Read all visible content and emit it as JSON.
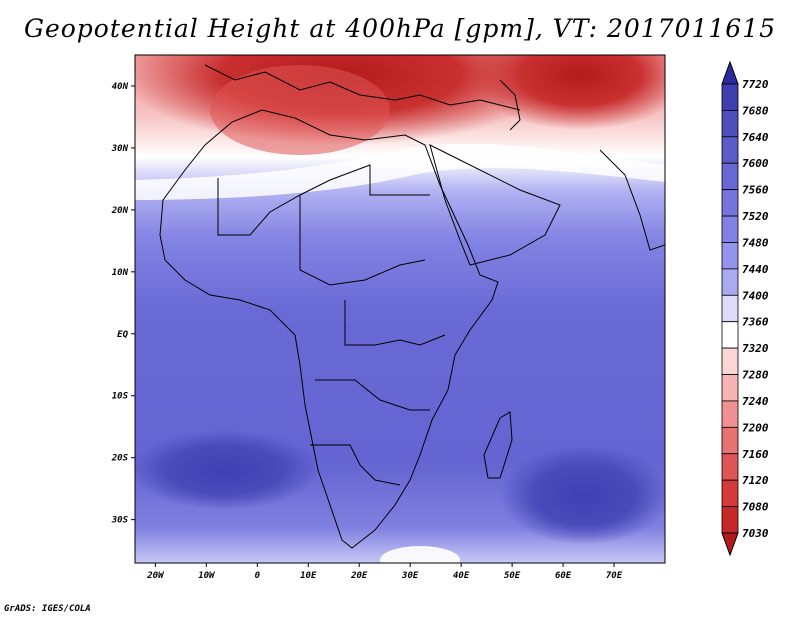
{
  "title": "Geopotential Height at 400hPa [gpm], VT: 2017011615",
  "credit": "GrADS: IGES/COLA",
  "colors": {
    "scale": [
      "#b31b1b",
      "#c62828",
      "#d43a3a",
      "#e05555",
      "#e77272",
      "#f09090",
      "#f6b4b4",
      "#fad6d6",
      "#ffffff",
      "#dcdcfa",
      "#c2c2f6",
      "#aaaaf2",
      "#9494ec",
      "#8282e4",
      "#7474dc",
      "#6868d4",
      "#5c5cc8",
      "#4e4ebc",
      "#3e3eb0",
      "#2c2ca0"
    ]
  },
  "chart_data": {
    "type": "heatmap",
    "title": "Geopotential Height at 400hPa [gpm], VT: 2017011615",
    "lon_range": [
      -24,
      80
    ],
    "lat_range": [
      -37,
      45
    ],
    "x_ticks": [
      "20W",
      "10W",
      "0",
      "10E",
      "20E",
      "30E",
      "40E",
      "50E",
      "60E",
      "70E"
    ],
    "x_tick_values": [
      -20,
      -10,
      0,
      10,
      20,
      30,
      40,
      50,
      60,
      70
    ],
    "y_ticks": [
      "40N",
      "30N",
      "20N",
      "10N",
      "EQ",
      "10S",
      "20S",
      "30S"
    ],
    "y_tick_values": [
      40,
      30,
      20,
      10,
      0,
      -10,
      -20,
      -30
    ],
    "colorbar_levels": [
      "7720",
      "7680",
      "7640",
      "7600",
      "7560",
      "7520",
      "7480",
      "7440",
      "7400",
      "7360",
      "7320",
      "7280",
      "7240",
      "7200",
      "7160",
      "7120",
      "7080",
      "7030"
    ],
    "colorbar_values": [
      7720,
      7680,
      7640,
      7600,
      7560,
      7520,
      7480,
      7440,
      7400,
      7360,
      7320,
      7280,
      7240,
      7200,
      7160,
      7120,
      7080,
      7030
    ]
  }
}
